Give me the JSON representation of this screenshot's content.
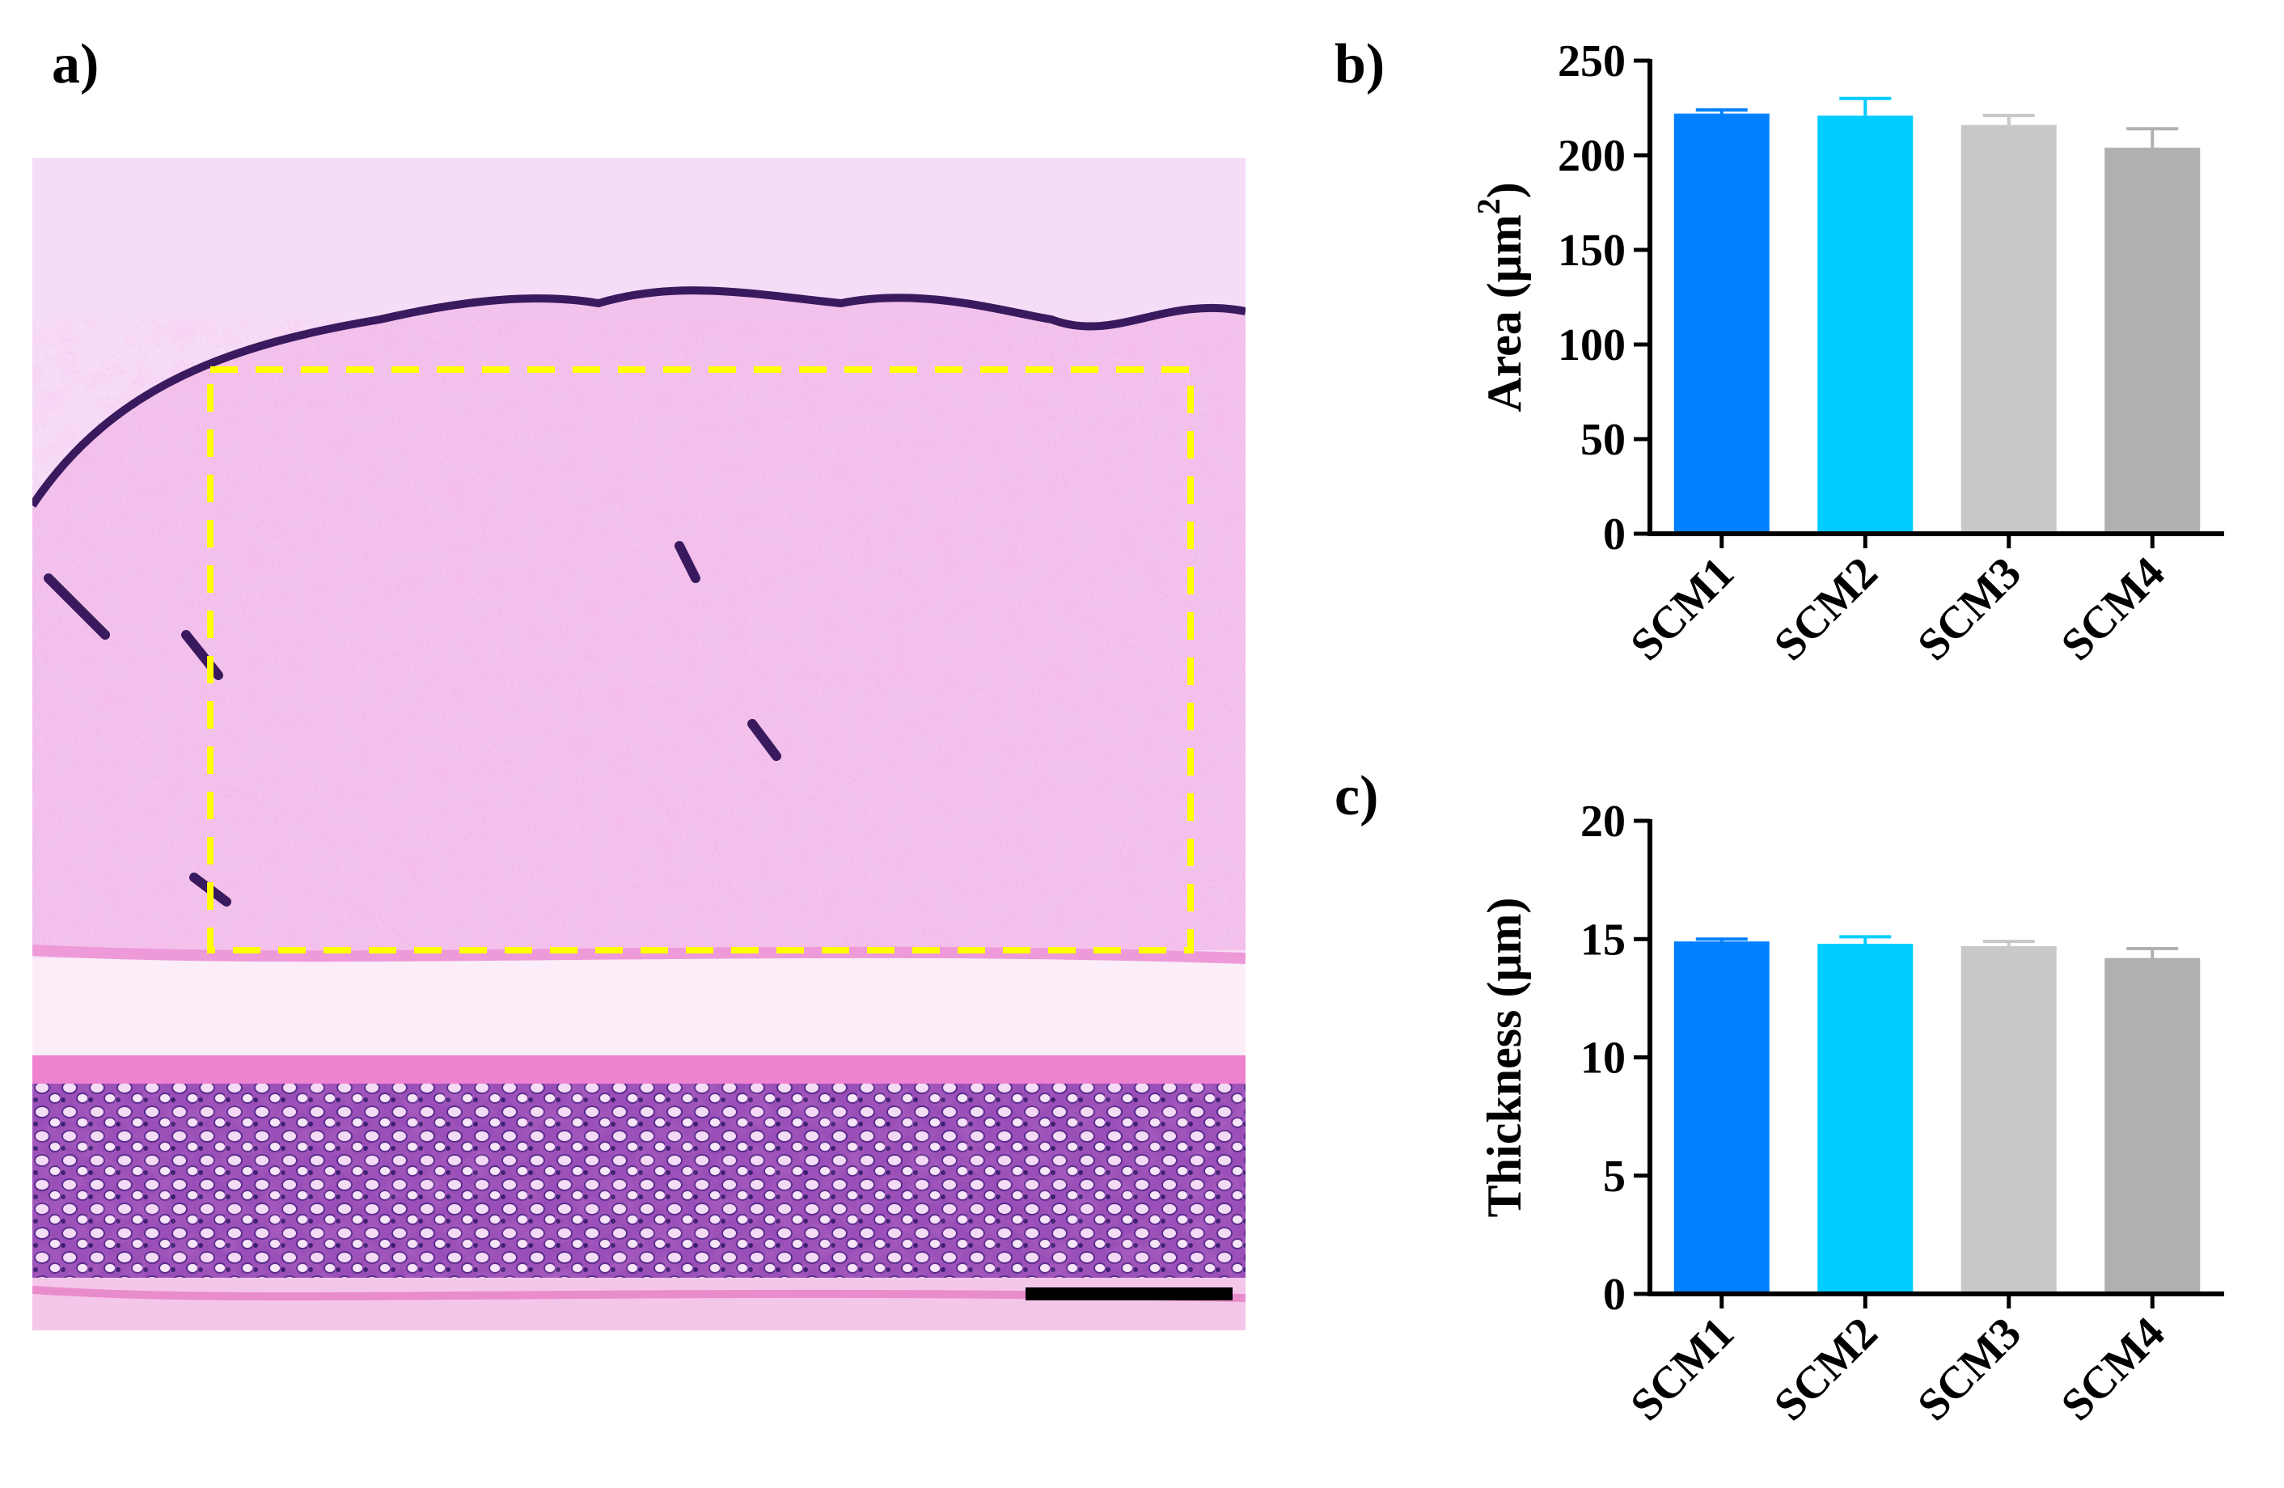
{
  "panels": {
    "a": "a)",
    "b": "b)",
    "c": "c)"
  },
  "colors": {
    "SCM1": "#0080ff",
    "SCM2": "#00ccff",
    "SCM3": "#c8c8c8",
    "SCM4": "#b0b0b0",
    "dashed_box": "#ffff00",
    "scale_bar": "#000000"
  },
  "chart_data": [
    {
      "type": "bar",
      "categories": [
        "SCM1",
        "SCM2",
        "SCM3",
        "SCM4"
      ],
      "values": [
        222,
        221,
        216,
        204
      ],
      "errors": [
        2,
        9,
        5,
        10
      ],
      "ylabel_main": "Area (μm",
      "ylabel_sup": "2",
      "ylabel_end": ")",
      "ylim": [
        0,
        250
      ],
      "yticks": [
        0,
        50,
        100,
        150,
        200,
        250
      ]
    },
    {
      "type": "bar",
      "categories": [
        "SCM1",
        "SCM2",
        "SCM3",
        "SCM4"
      ],
      "values": [
        14.9,
        14.8,
        14.7,
        14.2
      ],
      "errors": [
        0.1,
        0.3,
        0.2,
        0.4
      ],
      "ylabel_main": "Thickness (μm)",
      "ylim": [
        0,
        20
      ],
      "yticks": [
        0,
        5,
        10,
        15,
        20
      ]
    }
  ]
}
